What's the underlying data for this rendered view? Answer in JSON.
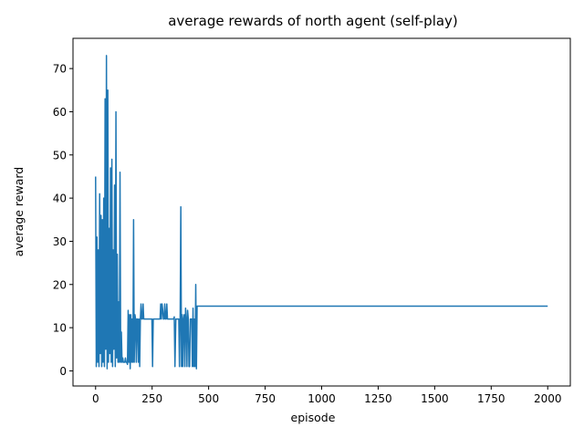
{
  "chart_data": {
    "type": "line",
    "title": "average rewards of north agent (self-play)",
    "xlabel": "episode",
    "ylabel": "average reward",
    "xlim": [
      -100,
      2100
    ],
    "ylim": [
      -3.5,
      77
    ],
    "xticks": [
      0,
      250,
      500,
      750,
      1000,
      1250,
      1500,
      1750,
      2000
    ],
    "yticks": [
      0,
      10,
      20,
      30,
      40,
      50,
      60,
      70
    ],
    "grid": false,
    "legend": "none",
    "color": "#1f77b4",
    "series": [
      {
        "x": [
          0,
          3,
          6,
          9,
          12,
          15,
          18,
          21,
          24,
          27,
          30,
          33,
          36,
          39,
          42,
          45,
          48,
          51,
          54,
          57,
          60,
          63,
          66,
          69,
          72,
          75,
          78,
          81,
          84,
          87,
          90,
          93,
          96,
          99,
          102,
          105,
          108,
          111,
          114,
          117,
          120,
          123,
          126,
          129,
          132,
          135,
          138,
          141,
          144,
          147,
          150,
          153,
          156,
          159,
          162,
          165,
          168,
          171,
          174,
          177,
          180,
          183,
          186,
          189,
          192,
          195,
          198,
          201,
          204,
          207,
          210,
          213,
          216,
          219,
          222,
          225,
          228,
          231,
          234,
          237,
          240,
          243,
          246,
          249,
          252,
          255,
          258,
          262,
          270,
          280,
          285,
          288,
          291,
          294,
          297,
          300,
          303,
          306,
          309,
          312,
          315,
          318,
          321,
          324,
          327,
          330,
          335,
          340,
          345,
          348,
          351,
          355,
          360,
          365,
          368,
          371,
          374,
          377,
          380,
          383,
          386,
          389,
          392,
          395,
          398,
          401,
          404,
          407,
          410,
          413,
          416,
          419,
          422,
          425,
          428,
          431,
          434,
          437,
          440,
          443,
          446,
          449,
          452,
          455,
          2000
        ],
        "y": [
          45,
          1,
          31,
          2,
          28,
          1,
          41,
          4,
          36,
          1,
          35,
          2,
          40,
          1,
          63,
          5,
          73,
          0.5,
          65,
          2,
          33,
          4,
          47,
          2,
          49,
          1,
          28,
          5,
          43,
          1,
          60,
          3,
          27,
          2,
          16,
          2,
          46,
          2,
          9,
          2,
          3,
          2,
          2,
          2,
          3,
          2,
          2,
          1.5,
          14,
          2,
          13,
          0.5,
          13,
          2,
          12,
          2,
          35,
          2,
          13,
          12,
          2,
          12,
          12,
          2,
          12,
          1,
          12,
          15.5,
          12,
          12,
          15.5,
          12,
          12,
          12,
          12,
          12,
          12,
          12,
          12,
          12,
          12,
          12,
          12,
          12,
          1,
          12,
          12,
          12,
          12,
          12,
          12,
          15.5,
          12,
          15.5,
          14,
          12,
          12,
          15.5,
          12,
          12,
          15.5,
          12,
          12,
          12,
          12,
          12,
          12,
          12,
          12,
          12.5,
          1,
          12,
          12,
          12,
          12,
          1,
          12,
          38,
          1,
          13,
          1,
          12,
          13,
          1,
          14.5,
          12,
          1,
          14,
          12,
          1,
          1,
          12,
          12,
          12,
          1,
          14.5,
          1,
          12,
          1,
          20,
          0.5,
          15,
          15,
          15,
          15
        ]
      }
    ]
  }
}
